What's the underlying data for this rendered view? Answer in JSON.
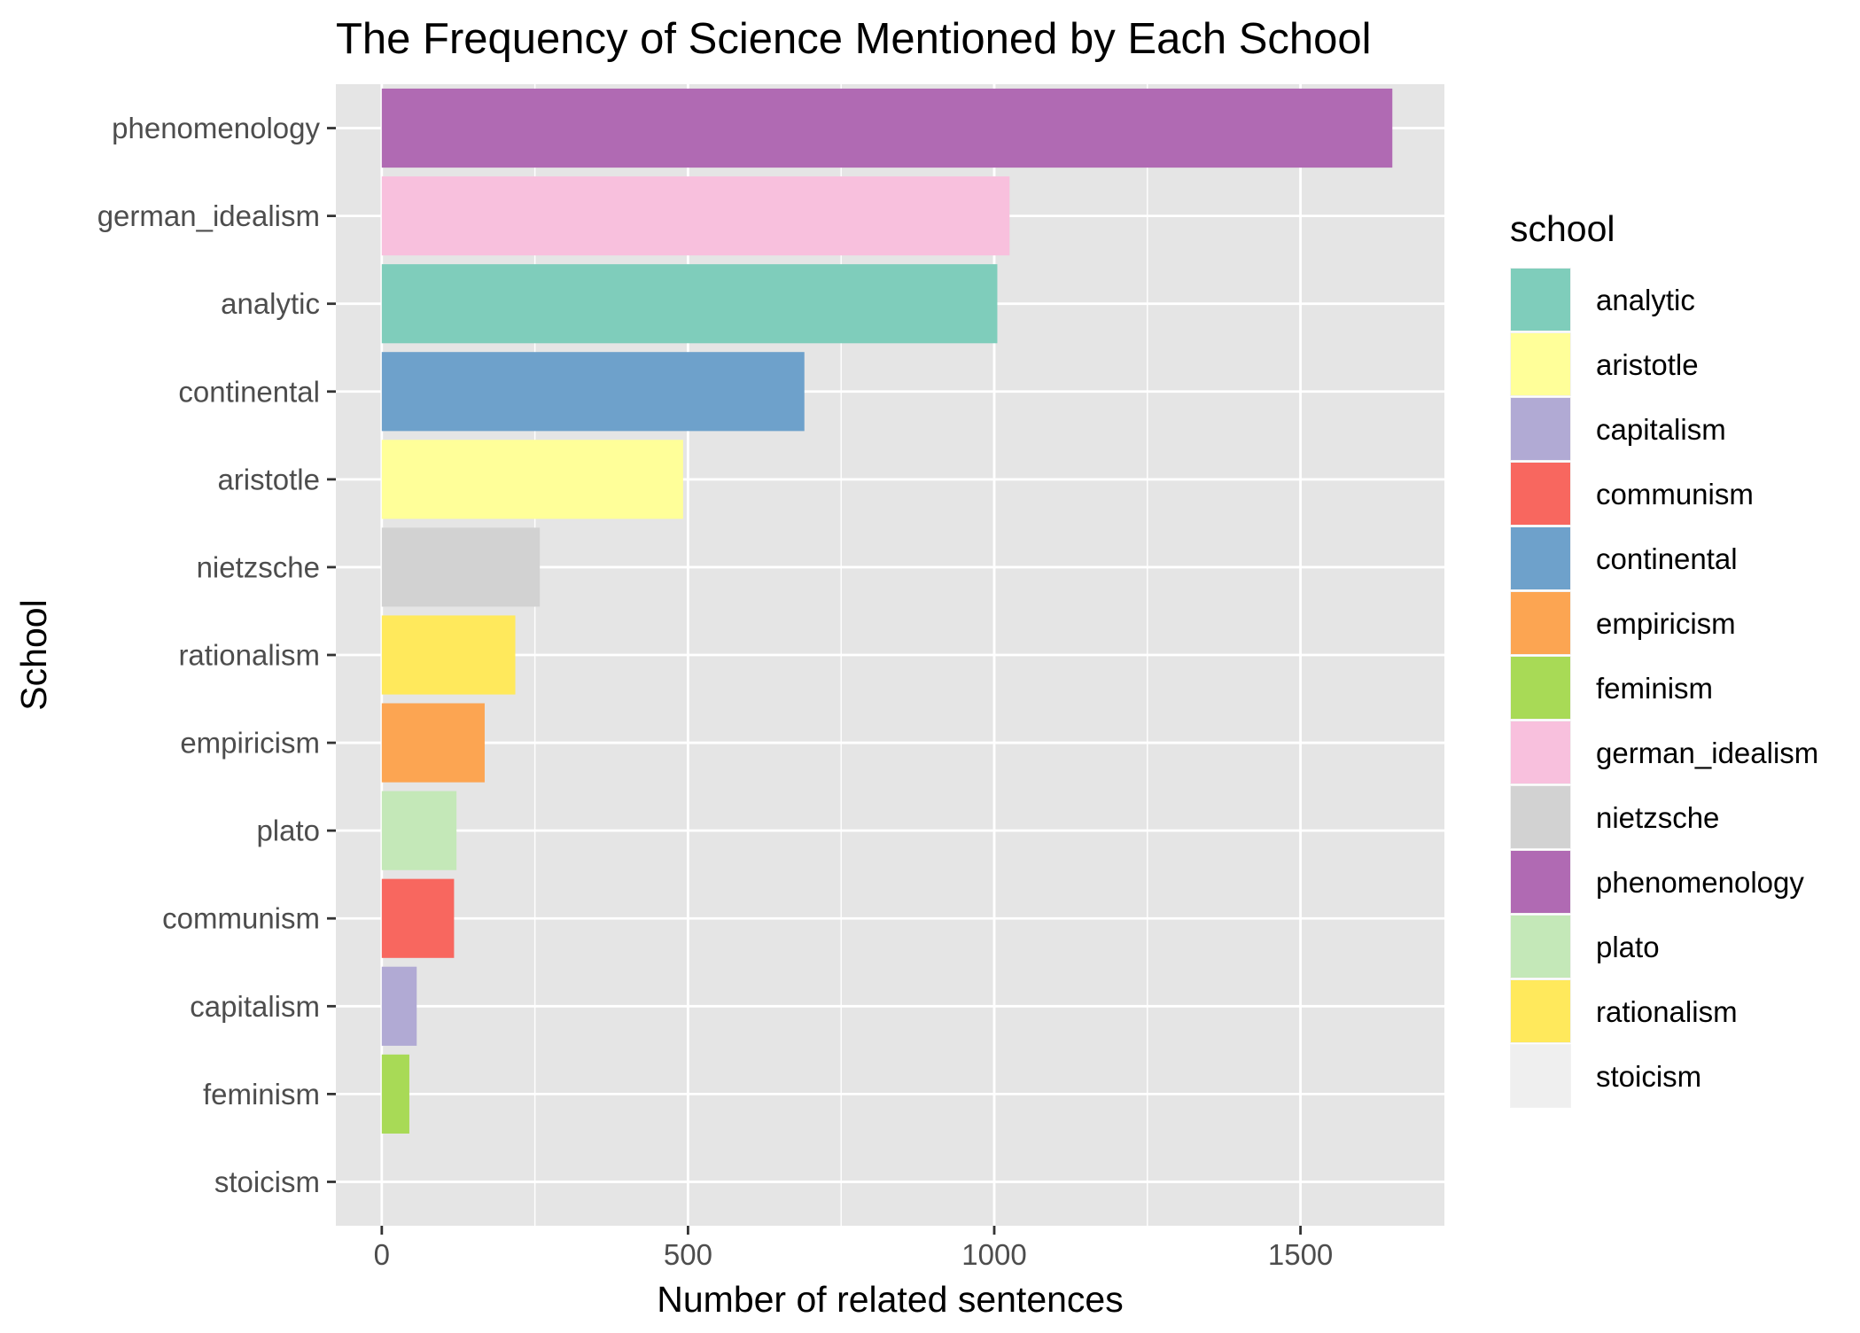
{
  "chart_data": {
    "type": "bar",
    "orientation": "horizontal",
    "title": "The Frequency of Science Mentioned by Each School",
    "xlabel": "Number of related sentences",
    "ylabel": "School",
    "xlim": [
      -75,
      1735
    ],
    "x_ticks": [
      0,
      500,
      1000,
      1500
    ],
    "grid": true,
    "legend_position": "right",
    "legend_title": "school",
    "categories": [
      "phenomenology",
      "german_idealism",
      "analytic",
      "continental",
      "aristotle",
      "nietzsche",
      "rationalism",
      "empiricism",
      "plato",
      "communism",
      "capitalism",
      "feminism",
      "stoicism"
    ],
    "values": [
      1650,
      1025,
      1005,
      690,
      492,
      258,
      218,
      168,
      122,
      118,
      57,
      45,
      0
    ],
    "colors": {
      "analytic": "#7fcdbb",
      "aristotle": "#ffff99",
      "capitalism": "#b1aad4",
      "communism": "#f8675f",
      "continental": "#6ea1cb",
      "empiricism": "#fca552",
      "feminism": "#a8da56",
      "german_idealism": "#f8c0dd",
      "nietzsche": "#d2d2d2",
      "phenomenology": "#b06ab3",
      "plato": "#c4e8b8",
      "rationalism": "#ffe95c",
      "stoicism": "#efefef"
    },
    "legend_entries": [
      "analytic",
      "aristotle",
      "capitalism",
      "communism",
      "continental",
      "empiricism",
      "feminism",
      "german_idealism",
      "nietzsche",
      "phenomenology",
      "plato",
      "rationalism",
      "stoicism"
    ]
  }
}
